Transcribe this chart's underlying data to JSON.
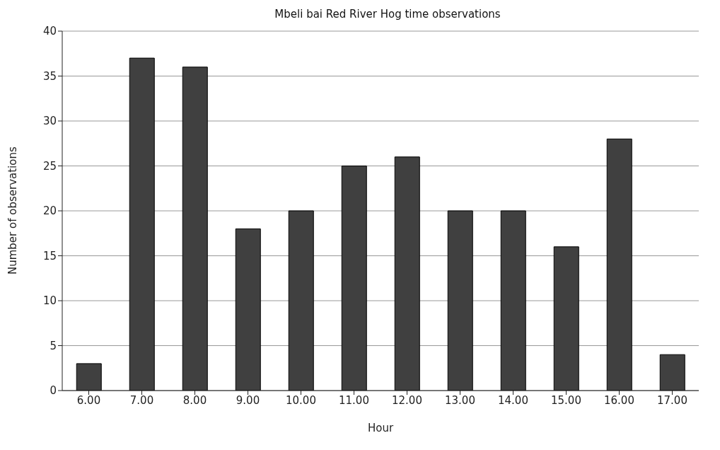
{
  "chart_data": {
    "type": "bar",
    "title": "Mbeli bai Red River Hog time observations",
    "xlabel": "Hour",
    "ylabel": "Number of observations",
    "categories": [
      "6.00",
      "7.00",
      "8.00",
      "9.00",
      "10.00",
      "11.00",
      "12.00",
      "13.00",
      "14.00",
      "15.00",
      "16.00",
      "17.00"
    ],
    "values": [
      3,
      37,
      36,
      18,
      20,
      25,
      26,
      20,
      20,
      16,
      28,
      4
    ],
    "color": "#404040",
    "ylim": [
      0,
      40
    ],
    "yticks": [
      0,
      5,
      10,
      15,
      20,
      25,
      30,
      35,
      40
    ],
    "grid": "y"
  }
}
